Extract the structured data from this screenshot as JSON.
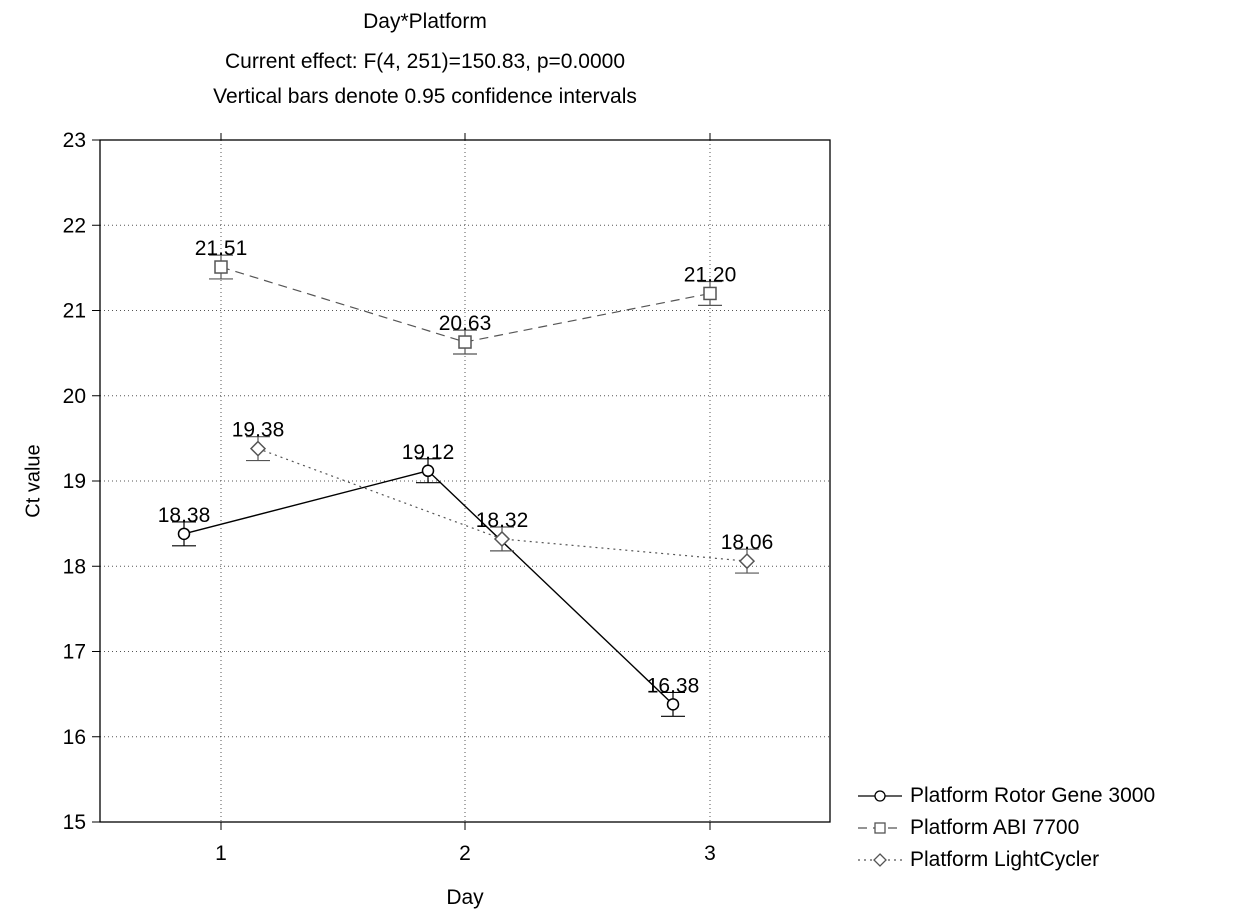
{
  "title": "Day*Platform",
  "subtitle_lines": [
    "Current effect: F(4, 251)=150.83, p=0.0000",
    "Vertical bars denote 0.95 confidence intervals"
  ],
  "chart_data": {
    "type": "line",
    "title": "Day*Platform",
    "xlabel": "Day",
    "ylabel": "Ct value",
    "categories": [
      "1",
      "2",
      "3"
    ],
    "ylim": [
      15,
      23
    ],
    "yticks": [
      15,
      16,
      17,
      18,
      19,
      20,
      21,
      22,
      23
    ],
    "grid": true,
    "error_bars": "0.95 confidence intervals",
    "legend_position": "bottom-right",
    "series": [
      {
        "name": "Platform  Rotor Gene 3000",
        "marker": "circle",
        "line_style": "solid",
        "color": "#000000",
        "values": [
          18.38,
          19.12,
          16.38
        ],
        "ci_low": [
          18.24,
          18.98,
          16.24
        ],
        "ci_high": [
          18.52,
          19.26,
          16.52
        ],
        "labels": [
          "18.38",
          "19.12",
          "16.38"
        ]
      },
      {
        "name": "Platform  ABI 7700",
        "marker": "square",
        "line_style": "dashed",
        "color": "#555555",
        "values": [
          21.51,
          20.63,
          21.2
        ],
        "ci_low": [
          21.37,
          20.49,
          21.06
        ],
        "ci_high": [
          21.65,
          20.77,
          21.34
        ],
        "labels": [
          "21.51",
          "20.63",
          "21.20"
        ]
      },
      {
        "name": "Platform  LightCycler",
        "marker": "diamond",
        "line_style": "dotted",
        "color": "#555555",
        "values": [
          19.38,
          18.32,
          18.06
        ],
        "ci_low": [
          19.24,
          18.18,
          17.92
        ],
        "ci_high": [
          19.52,
          18.46,
          18.2
        ],
        "labels": [
          "19.38",
          "18.32",
          "18.06"
        ]
      }
    ]
  }
}
